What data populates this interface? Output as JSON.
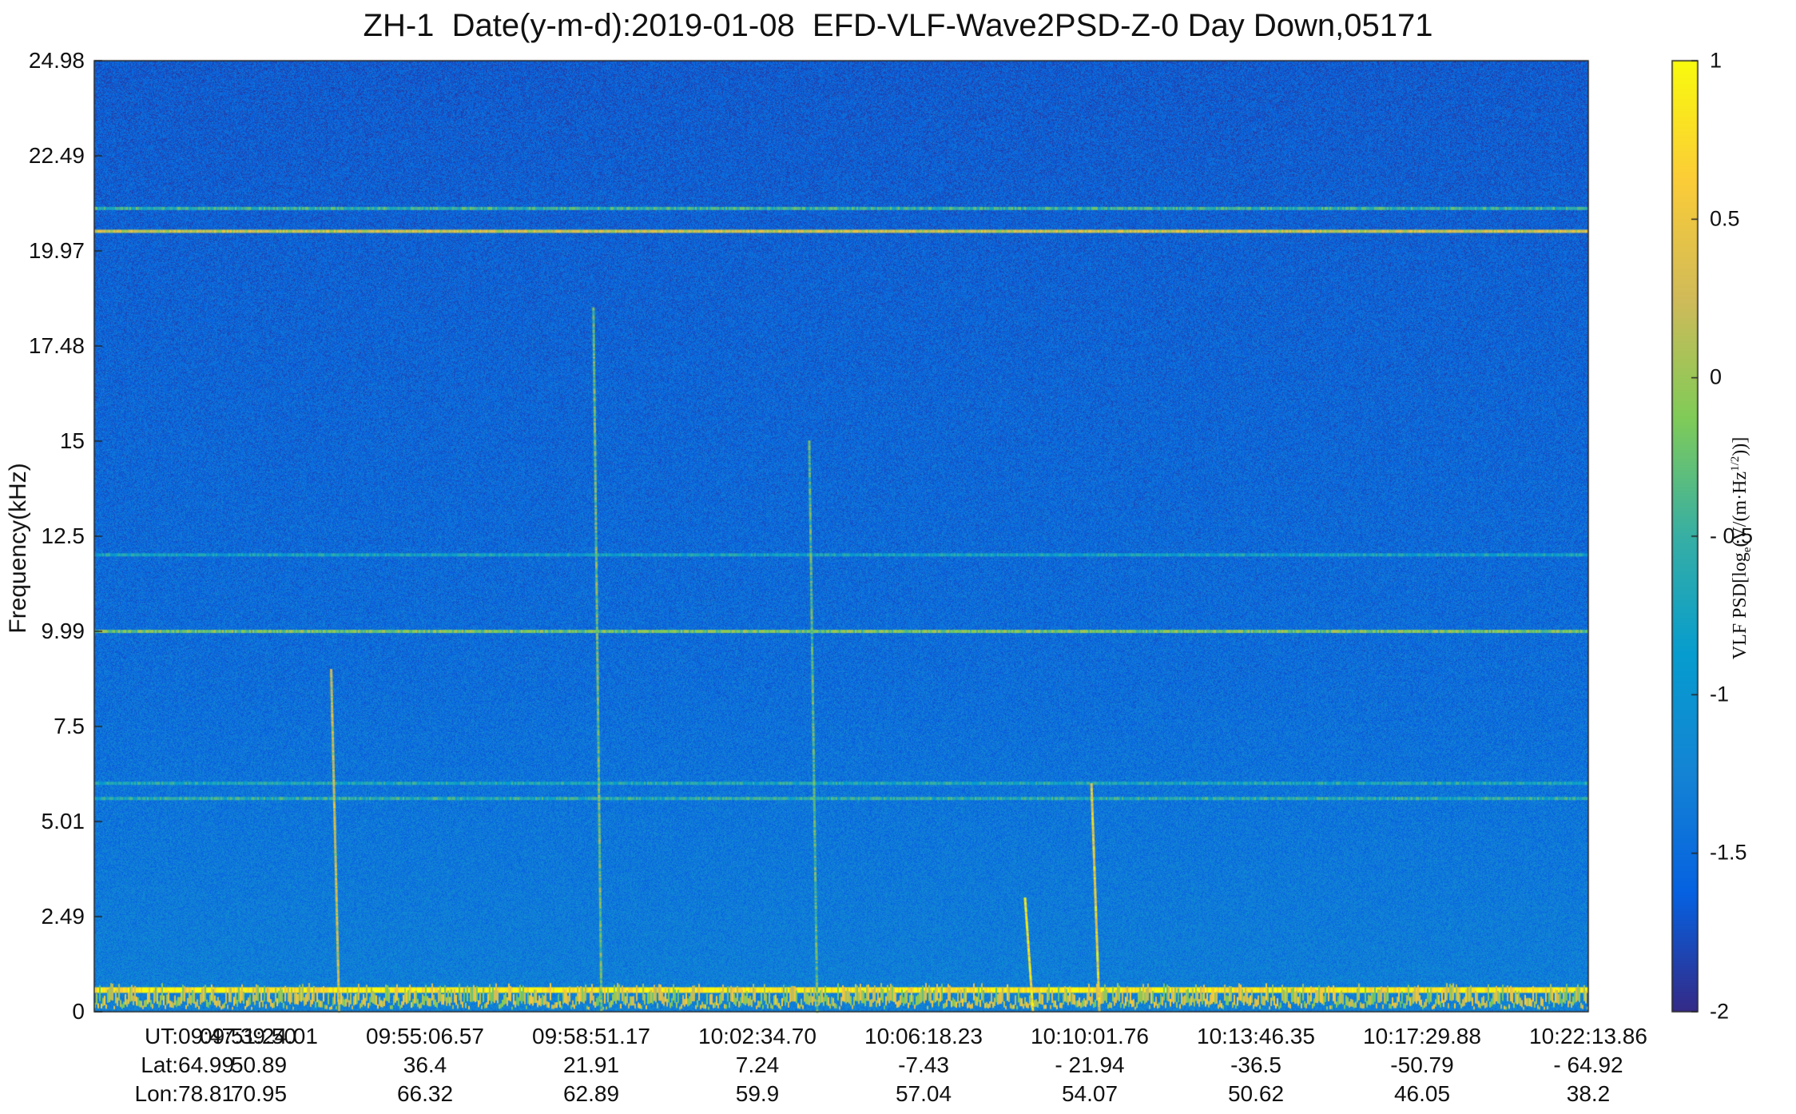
{
  "chart_data": {
    "type": "heatmap",
    "title": "ZH-1  Date(y-m-d):2019-01-08  EFD-VLF-Wave2PSD-Z-0 Day Down,05171",
    "ylabel": "Frequency(kHz)",
    "ylim": [
      0,
      24.98
    ],
    "y_ticks": [
      "24.98",
      "22.49",
      "19.97",
      "17.48",
      "15",
      "12.5",
      "9.99",
      "7.5",
      "5.01",
      "2.49",
      "0"
    ],
    "x_ticks": {
      "ut_prefix": "UT:",
      "lat_prefix": "Lat:",
      "lon_prefix": "Lon:",
      "ut": [
        "09:47:39.50",
        "09:51:24.01",
        "09:55:06.57",
        "09:58:51.17",
        "10:02:34.70",
        "10:06:18.23",
        "10:10:01.76",
        "10:13:46.35",
        "10:17:29.88",
        "10:22:13.86"
      ],
      "lat": [
        "64.99",
        "50.89",
        "36.4",
        "21.91",
        "7.24",
        "-7.43",
        "- 21.94",
        "-36.5",
        "-50.79",
        "- 64.92"
      ],
      "lon": [
        "78.81",
        "70.95",
        "66.32",
        "62.89",
        "59.9",
        "57.04",
        "54.07",
        "50.62",
        "46.05",
        "38.2"
      ]
    },
    "colorbar": {
      "label_main": "VLF PSD[log",
      "label_sub": "e",
      "label_mid": "(V/(m·Hz",
      "label_sup": "1/2",
      "label_end": "))]",
      "range": [
        -2,
        1
      ],
      "ticks": [
        "1",
        "0.5",
        "0",
        "- 0.5",
        "-1",
        "-1.5",
        "-2"
      ],
      "colormap": "parula"
    },
    "background_level": -1.4,
    "horizontal_lines_khz": [
      {
        "f": 20.5,
        "level": 0.2
      },
      {
        "f": 21.1,
        "level": -0.5
      },
      {
        "f": 9.99,
        "level": -0.2
      },
      {
        "f": 12.0,
        "level": -0.8
      },
      {
        "f": 6.0,
        "level": -0.7
      },
      {
        "f": 5.6,
        "level": -0.6
      },
      {
        "f": 0.6,
        "level": 0.9
      }
    ],
    "whistler_features": [
      {
        "ut_index": 1.42,
        "f_top_khz": 9,
        "level": 0.3
      },
      {
        "ut_index": 3.0,
        "f_top_khz": 18.5,
        "level": -0.2
      },
      {
        "ut_index": 4.3,
        "f_top_khz": 15,
        "level": -0.3
      },
      {
        "ut_index": 5.6,
        "f_top_khz": 3,
        "level": 0.8
      },
      {
        "ut_index": 6.0,
        "f_top_khz": 6,
        "level": 0.6
      }
    ]
  }
}
